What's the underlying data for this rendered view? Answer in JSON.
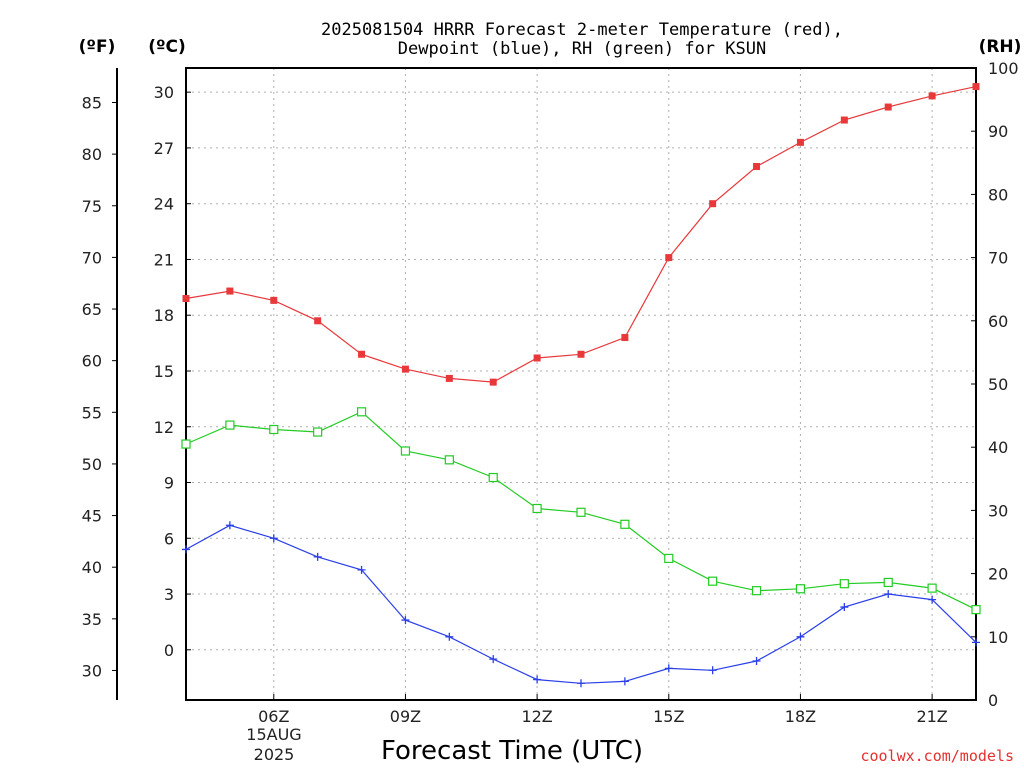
{
  "chart_data": {
    "type": "line",
    "title_line1": "2025081504 HRRR Forecast 2-meter Temperature (red),",
    "title_line2": "Dewpoint (blue), RH (green) for KSUN",
    "axis_units": {
      "fahrenheit": "(ºF)",
      "celsius": "(ºC)",
      "rh": "(RH)"
    },
    "xlabel": "Forecast Time (UTC)",
    "x_ticks": [
      "06Z",
      "09Z",
      "12Z",
      "15Z",
      "18Z",
      "21Z"
    ],
    "date_label": [
      "15AUG",
      "2025"
    ],
    "celsius_ticks": [
      "30",
      "27",
      "24",
      "21",
      "18",
      "15",
      "12",
      "9",
      "6",
      "3",
      "0"
    ],
    "fahrenheit_ticks": [
      "85",
      "80",
      "75",
      "70",
      "65",
      "60",
      "55",
      "50",
      "45",
      "40",
      "35",
      "30"
    ],
    "rh_ticks": [
      "100",
      "90",
      "80",
      "70",
      "60",
      "50",
      "40",
      "30",
      "20",
      "10",
      "0"
    ],
    "x_hours_utc": [
      4,
      5,
      6,
      7,
      8,
      9,
      10,
      11,
      12,
      13,
      14,
      15,
      16,
      17,
      18,
      19,
      20,
      21,
      22
    ],
    "xlim_hours_utc": [
      4,
      22
    ],
    "ylim_celsius": [
      -2.7,
      31.3
    ],
    "ylim_rh": [
      0,
      100
    ],
    "grid": true,
    "series": [
      {
        "key": "temperature",
        "color": "#e8383a",
        "marker": "filled-square",
        "axis": "celsius",
        "values": [
          18.9,
          19.3,
          18.8,
          17.7,
          15.9,
          15.1,
          14.6,
          14.4,
          15.7,
          15.9,
          16.8,
          21.1,
          24.0,
          26.0,
          27.3,
          28.5,
          29.2,
          29.8,
          30.3
        ]
      },
      {
        "key": "dewpoint",
        "color": "#2a3fe8",
        "marker": "plus",
        "axis": "celsius",
        "values": [
          5.4,
          6.7,
          6.0,
          5.0,
          4.3,
          1.6,
          0.7,
          -0.5,
          -1.6,
          -1.8,
          -1.7,
          -1.0,
          -1.1,
          -0.6,
          0.7,
          2.3,
          3.0,
          2.7,
          0.4
        ]
      },
      {
        "key": "rh",
        "color": "#22cc22",
        "marker": "open-square",
        "axis": "rh",
        "values": [
          40.5,
          43.5,
          42.8,
          42.4,
          45.6,
          39.4,
          38.0,
          35.2,
          30.3,
          29.7,
          27.8,
          22.4,
          18.8,
          17.3,
          17.6,
          18.4,
          18.6,
          17.7,
          14.3
        ]
      }
    ]
  },
  "credit": "coolwx.com/models"
}
